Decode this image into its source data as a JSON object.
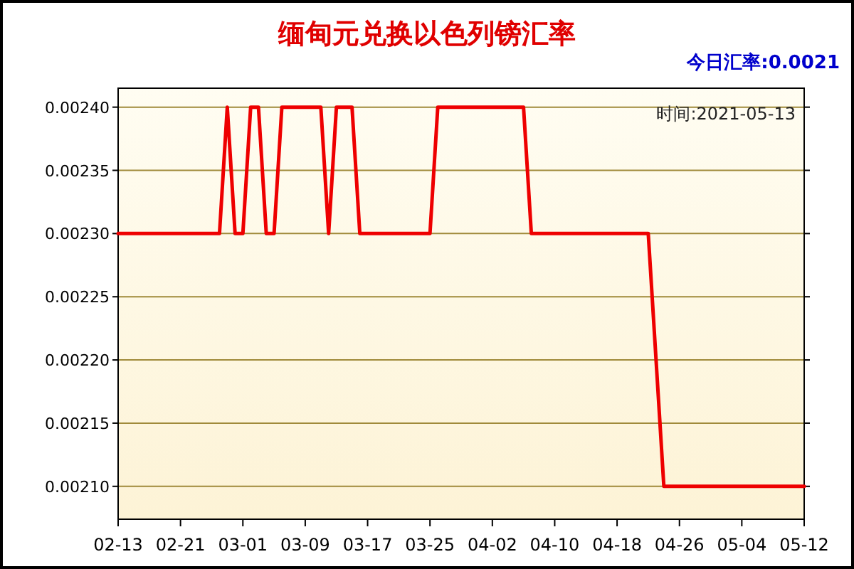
{
  "chart_data": {
    "type": "line",
    "title": "缅甸元兑换以色列镑汇率",
    "annotations": [
      "今日汇率:0.0021",
      "时间:2021-05-13"
    ],
    "x": [
      "2021-02-13",
      "2021-02-26",
      "2021-02-27",
      "2021-02-28",
      "2021-03-01",
      "2021-03-02",
      "2021-03-03",
      "2021-03-04",
      "2021-03-05",
      "2021-03-06",
      "2021-03-11",
      "2021-03-12",
      "2021-03-13",
      "2021-03-15",
      "2021-03-16",
      "2021-03-25",
      "2021-03-26",
      "2021-04-06",
      "2021-04-07",
      "2021-04-22",
      "2021-04-24",
      "2021-05-12"
    ],
    "series": [
      {
        "color": "#ee0000",
        "values": [
          0.0023,
          0.0023,
          0.0024,
          0.0023,
          0.0023,
          0.0024,
          0.0024,
          0.0023,
          0.0023,
          0.0024,
          0.0024,
          0.0023,
          0.0024,
          0.0024,
          0.0023,
          0.0023,
          0.0024,
          0.0024,
          0.0023,
          0.0023,
          0.0021,
          0.0021
        ]
      }
    ],
    "xlim": [
      "2021-02-13",
      "2021-05-12"
    ],
    "xticks": [
      {
        "value": "2021-02-13",
        "label": "02-13"
      },
      {
        "value": "2021-02-21",
        "label": "02-21"
      },
      {
        "value": "2021-03-01",
        "label": "03-01"
      },
      {
        "value": "2021-03-09",
        "label": "03-09"
      },
      {
        "value": "2021-03-17",
        "label": "03-17"
      },
      {
        "value": "2021-03-25",
        "label": "03-25"
      },
      {
        "value": "2021-04-02",
        "label": "04-02"
      },
      {
        "value": "2021-04-10",
        "label": "04-10"
      },
      {
        "value": "2021-04-18",
        "label": "04-18"
      },
      {
        "value": "2021-04-26",
        "label": "04-26"
      },
      {
        "value": "2021-05-04",
        "label": "05-04"
      },
      {
        "value": "2021-05-12",
        "label": "05-12"
      }
    ],
    "ylim": [
      0.002074,
      0.002415
    ],
    "yticks": [
      {
        "value": 0.0021,
        "label": "0.00210"
      },
      {
        "value": 0.00215,
        "label": "0.00215"
      },
      {
        "value": 0.0022,
        "label": "0.00220"
      },
      {
        "value": 0.00225,
        "label": "0.00225"
      },
      {
        "value": 0.0023,
        "label": "0.00230"
      },
      {
        "value": 0.00235,
        "label": "0.00235"
      },
      {
        "value": 0.0024,
        "label": "0.00240"
      }
    ],
    "grid": "y",
    "marker": "none",
    "line_style": "solid"
  }
}
